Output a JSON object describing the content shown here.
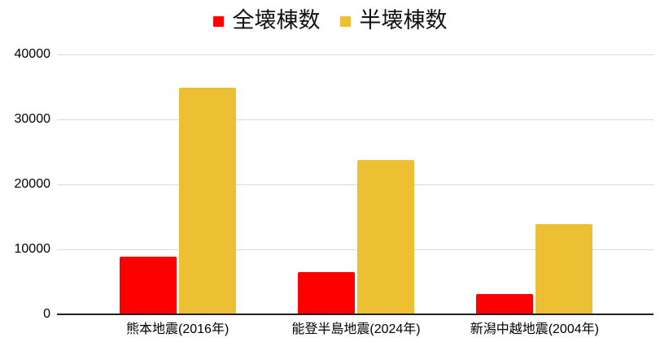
{
  "legend": {
    "position": "top"
  },
  "chart_data": {
    "type": "bar",
    "title": "",
    "categories": [
      "熊本地震(2016年)",
      "能登半島地震(2024年)",
      "新潟中越地震(2004年)"
    ],
    "series": [
      {
        "name": "全壊棟数",
        "color": "#FF0000",
        "values": [
          8700,
          6400,
          3000
        ]
      },
      {
        "name": "半壊棟数",
        "color": "#EDBF33",
        "values": [
          34700,
          23600,
          13800
        ]
      }
    ],
    "xlabel": "",
    "ylabel": "",
    "ylim": [
      0,
      40000
    ],
    "y_ticks": [
      0,
      10000,
      20000,
      30000,
      40000
    ],
    "grid": true,
    "legend_position": "top"
  },
  "colors": {
    "gridline": "#DADADA",
    "axis_line": "#212121",
    "label_text": "#000000",
    "background": "#FFFFFF"
  }
}
